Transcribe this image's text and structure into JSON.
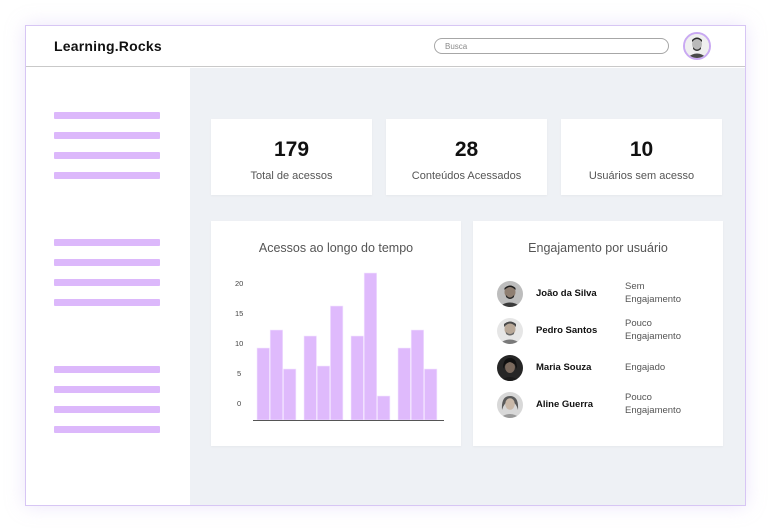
{
  "header": {
    "brand": "Learning.Rocks",
    "search_placeholder": "Busca",
    "avatar_icon": "user-avatar-icon"
  },
  "sidebar": {
    "groups": [
      {
        "items": 4
      },
      {
        "items": 4
      },
      {
        "items": 4
      }
    ],
    "line_color": "#dcb8fb"
  },
  "stats": [
    {
      "value": "179",
      "label": "Total de acessos"
    },
    {
      "value": "28",
      "label": "Conteúdos Acessados"
    },
    {
      "value": "10",
      "label": "Usuários sem acesso"
    }
  ],
  "chart_panel": {
    "title": "Acessos ao longo do tempo"
  },
  "chart_data": {
    "type": "bar",
    "title": "Acessos ao longo do tempo",
    "xlabel": "",
    "ylabel": "",
    "ylim": [
      0,
      25
    ],
    "yticks": [
      "0",
      "5",
      "10",
      "15",
      "20"
    ],
    "groups": [
      [
        12,
        15,
        8.5
      ],
      [
        14,
        9,
        19
      ],
      [
        14,
        24.5,
        4
      ],
      [
        12,
        15,
        8.5
      ]
    ],
    "bar_color": "#dfbafc",
    "grid": false
  },
  "engagement_panel": {
    "title": "Engajamento por usuário",
    "users": [
      {
        "name": "João da Silva",
        "status_line1": "Sem",
        "status_line2": "Engajamento"
      },
      {
        "name": "Pedro Santos",
        "status_line1": "Pouco",
        "status_line2": "Engajamento"
      },
      {
        "name": "Maria Souza",
        "status_line1": "Engajado",
        "status_line2": ""
      },
      {
        "name": "Aline Guerra",
        "status_line1": "Pouco",
        "status_line2": "Engajamento"
      }
    ]
  },
  "colors": {
    "accent": "#dcb8fb",
    "content_bg": "#eef1f5",
    "frame_border": "#d7c6f4"
  }
}
